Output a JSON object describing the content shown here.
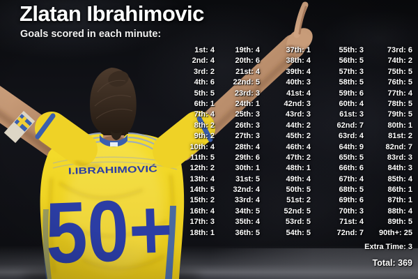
{
  "header": {
    "title": "Zlatan Ibrahimovic",
    "subtitle": "Goals scored in each minute:"
  },
  "photo": {
    "jersey_name": "I.IBRAHIMOVIĆ",
    "jersey_number": "50+"
  },
  "colors": {
    "jersey_yellow": "#efd226",
    "jersey_blue": "#2b3da4",
    "text_white": "#ffffff"
  },
  "chart_data": {
    "type": "table",
    "title": "Zlatan Ibrahimovic",
    "subtitle": "Goals scored in each minute:",
    "columns": [
      {
        "labels": [
          "1st",
          "2nd",
          "3rd",
          "4th",
          "5th",
          "6th",
          "7th",
          "8th",
          "9th",
          "10th",
          "11th",
          "12th",
          "13th",
          "14th",
          "15th",
          "16th",
          "17th",
          "18th"
        ],
        "values": [
          4,
          4,
          2,
          6,
          5,
          1,
          4,
          2,
          2,
          4,
          5,
          2,
          4,
          5,
          2,
          4,
          3,
          1
        ]
      },
      {
        "labels": [
          "19th",
          "20th",
          "21st",
          "22nd",
          "23rd",
          "24th",
          "25th",
          "26th",
          "27th",
          "28th",
          "29th",
          "30th",
          "31st",
          "32nd",
          "33rd",
          "34th",
          "35th",
          "36th"
        ],
        "values": [
          4,
          6,
          4,
          5,
          3,
          1,
          3,
          3,
          3,
          4,
          6,
          1,
          5,
          4,
          4,
          5,
          4,
          5
        ]
      },
      {
        "labels": [
          "37th",
          "38th",
          "39th",
          "40th",
          "41st",
          "42nd",
          "43rd",
          "44th",
          "45th",
          "46th",
          "47th",
          "48th",
          "49th",
          "50th",
          "51st",
          "52nd",
          "53rd",
          "54th"
        ],
        "values": [
          1,
          4,
          4,
          3,
          4,
          3,
          3,
          2,
          2,
          4,
          2,
          1,
          4,
          5,
          2,
          5,
          5,
          5
        ]
      },
      {
        "labels": [
          "55th",
          "56th",
          "57th",
          "58th",
          "59th",
          "60th",
          "61st",
          "62nd",
          "63rd",
          "64th",
          "65th",
          "66th",
          "67th",
          "68th",
          "69th",
          "70th",
          "71st",
          "72nd"
        ],
        "values": [
          3,
          5,
          3,
          5,
          6,
          4,
          3,
          7,
          4,
          9,
          5,
          6,
          4,
          5,
          6,
          3,
          4,
          7
        ]
      },
      {
        "labels": [
          "73rd",
          "74th",
          "75th",
          "76th",
          "77th",
          "78th",
          "79th",
          "80th",
          "81st",
          "82nd",
          "83rd",
          "84th",
          "85th",
          "86th",
          "87th",
          "88th",
          "89th",
          "90th+"
        ],
        "values": [
          6,
          2,
          5,
          5,
          4,
          5,
          5,
          1,
          2,
          7,
          3,
          3,
          4,
          1,
          1,
          4,
          5,
          25
        ]
      }
    ],
    "extra_time": {
      "label": "Extra Time",
      "value": 3
    },
    "total": {
      "label": "Total",
      "value": 369
    }
  }
}
